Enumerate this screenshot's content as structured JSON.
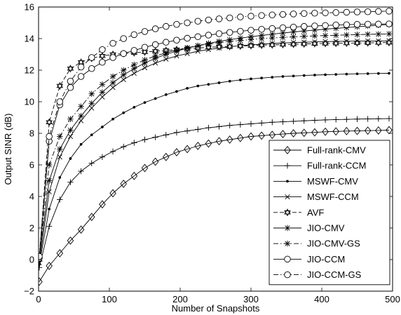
{
  "chart_data": {
    "type": "line",
    "xlabel": "Number of Snapshots",
    "ylabel": "Output SINR (dB)",
    "xlim": [
      0,
      500
    ],
    "ylim": [
      -2,
      16
    ],
    "xticks": [
      0,
      100,
      200,
      300,
      400,
      500
    ],
    "yticks": [
      -2,
      0,
      2,
      4,
      6,
      8,
      10,
      12,
      14,
      16
    ],
    "grid": false,
    "legend_position": "bottom-right",
    "x": [
      1,
      15,
      30,
      45,
      60,
      75,
      90,
      105,
      120,
      135,
      150,
      165,
      180,
      195,
      210,
      225,
      240,
      255,
      270,
      285,
      300,
      315,
      330,
      345,
      360,
      375,
      390,
      405,
      420,
      435,
      450,
      465,
      480,
      495
    ],
    "series": [
      {
        "name": "Full-rank-CMV",
        "style": "solid",
        "marker": "diamond",
        "values": [
          -1.4,
          -0.4,
          0.4,
          1.2,
          1.9,
          2.7,
          3.5,
          4.2,
          4.8,
          5.3,
          5.8,
          6.2,
          6.5,
          6.8,
          7.0,
          7.2,
          7.35,
          7.5,
          7.6,
          7.7,
          7.8,
          7.85,
          7.9,
          7.95,
          8.0,
          8.03,
          8.06,
          8.1,
          8.12,
          8.14,
          8.15,
          8.17,
          8.18,
          8.2
        ]
      },
      {
        "name": "Full-rank-CCM",
        "style": "solid",
        "marker": "plus",
        "values": [
          -0.5,
          2.1,
          3.8,
          4.9,
          5.6,
          6.1,
          6.5,
          6.85,
          7.15,
          7.4,
          7.6,
          7.75,
          7.9,
          8.05,
          8.15,
          8.25,
          8.35,
          8.42,
          8.5,
          8.55,
          8.6,
          8.65,
          8.7,
          8.73,
          8.76,
          8.79,
          8.82,
          8.85,
          8.87,
          8.88,
          8.9,
          8.91,
          8.92,
          8.93
        ]
      },
      {
        "name": "MSWF-CMV",
        "style": "solid",
        "marker": "dot",
        "values": [
          -0.3,
          3.2,
          5.2,
          6.4,
          7.3,
          7.9,
          8.4,
          8.9,
          9.3,
          9.65,
          9.95,
          10.2,
          10.45,
          10.65,
          10.85,
          11.0,
          11.1,
          11.2,
          11.3,
          11.38,
          11.45,
          11.5,
          11.55,
          11.6,
          11.63,
          11.66,
          11.69,
          11.71,
          11.73,
          11.75,
          11.77,
          11.78,
          11.79,
          11.8
        ]
      },
      {
        "name": "MSWF-CCM",
        "style": "solid",
        "marker": "x",
        "values": [
          -0.2,
          4.3,
          6.5,
          7.8,
          8.8,
          9.6,
          10.3,
          10.9,
          11.4,
          11.8,
          12.15,
          12.45,
          12.7,
          12.9,
          13.05,
          13.2,
          13.3,
          13.4,
          13.48,
          13.55,
          13.6,
          13.65,
          13.69,
          13.72,
          13.75,
          13.77,
          13.79,
          13.81,
          13.82,
          13.83,
          13.84,
          13.85,
          13.85,
          13.86
        ]
      },
      {
        "name": "AVF",
        "style": "dashed",
        "marker": "star",
        "values": [
          0.0,
          8.7,
          11.0,
          12.1,
          12.5,
          12.75,
          12.9,
          13.0,
          13.05,
          13.1,
          13.15,
          13.2,
          13.25,
          13.3,
          13.35,
          13.4,
          13.45,
          13.48,
          13.5,
          13.53,
          13.55,
          13.58,
          13.6,
          13.62,
          13.64,
          13.66,
          13.68,
          13.69,
          13.7,
          13.71,
          13.72,
          13.73,
          13.74,
          13.75
        ]
      },
      {
        "name": "JIO-CMV",
        "style": "solid",
        "marker": "asterisk",
        "values": [
          0.1,
          5.0,
          7.0,
          8.2,
          9.1,
          9.9,
          10.6,
          11.2,
          11.7,
          12.1,
          12.45,
          12.75,
          13.0,
          13.2,
          13.4,
          13.55,
          13.7,
          13.82,
          13.93,
          14.03,
          14.12,
          14.2,
          14.28,
          14.35,
          14.42,
          14.48,
          14.54,
          14.6,
          14.65,
          14.7,
          14.75,
          14.8,
          14.85,
          14.9
        ]
      },
      {
        "name": "JIO-CMV-GS",
        "style": "dashdot",
        "marker": "asterisk",
        "values": [
          0.2,
          6.0,
          7.8,
          8.9,
          9.7,
          10.5,
          11.1,
          11.6,
          12.0,
          12.35,
          12.65,
          12.9,
          13.1,
          13.28,
          13.42,
          13.55,
          13.65,
          13.74,
          13.82,
          13.88,
          13.94,
          13.99,
          14.04,
          14.08,
          14.11,
          14.14,
          14.17,
          14.19,
          14.21,
          14.23,
          14.25,
          14.27,
          14.28,
          14.3
        ]
      },
      {
        "name": "JIO-CCM",
        "style": "solid",
        "marker": "circle",
        "values": [
          0.1,
          7.5,
          9.8,
          10.9,
          11.6,
          12.1,
          12.5,
          12.8,
          13.05,
          13.25,
          13.45,
          13.62,
          13.77,
          13.9,
          14.02,
          14.12,
          14.22,
          14.31,
          14.39,
          14.46,
          14.53,
          14.59,
          14.64,
          14.69,
          14.73,
          14.77,
          14.8,
          14.83,
          14.86,
          14.88,
          14.9,
          14.91,
          14.92,
          14.93
        ]
      },
      {
        "name": "JIO-CCM-GS",
        "style": "dashdot",
        "marker": "circle",
        "values": [
          0.2,
          7.8,
          10.0,
          11.3,
          12.2,
          12.8,
          13.3,
          13.7,
          14.0,
          14.25,
          14.45,
          14.62,
          14.77,
          14.9,
          15.0,
          15.1,
          15.18,
          15.25,
          15.31,
          15.37,
          15.42,
          15.46,
          15.5,
          15.53,
          15.56,
          15.59,
          15.61,
          15.63,
          15.65,
          15.67,
          15.69,
          15.7,
          15.72,
          15.74
        ]
      }
    ]
  }
}
